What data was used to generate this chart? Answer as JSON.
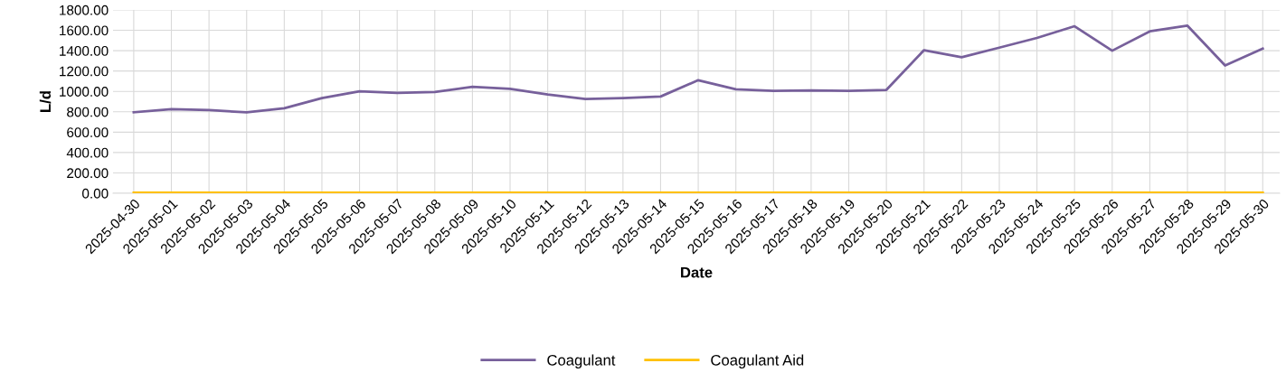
{
  "chart_data": {
    "type": "line",
    "xlabel": "Date",
    "ylabel": "L/d",
    "categories": [
      "2025-04-30",
      "2025-05-01",
      "2025-05-02",
      "2025-05-03",
      "2025-05-04",
      "2025-05-05",
      "2025-05-06",
      "2025-05-07",
      "2025-05-08",
      "2025-05-09",
      "2025-05-10",
      "2025-05-11",
      "2025-05-12",
      "2025-05-13",
      "2025-05-14",
      "2025-05-15",
      "2025-05-16",
      "2025-05-17",
      "2025-05-18",
      "2025-05-19",
      "2025-05-20",
      "2025-05-21",
      "2025-05-22",
      "2025-05-23",
      "2025-05-24",
      "2025-05-25",
      "2025-05-26",
      "2025-05-27",
      "2025-05-28",
      "2025-05-29",
      "2025-05-30"
    ],
    "series": [
      {
        "name": "Coagulant",
        "color": "#77609b",
        "values": [
          795,
          825,
          816,
          795,
          835,
          935,
          1000,
          985,
          995,
          1045,
          1025,
          970,
          925,
          935,
          950,
          1110,
          1020,
          1005,
          1010,
          1005,
          1015,
          1405,
          1335,
          1430,
          1525,
          1640,
          1400,
          1590,
          1645,
          1255,
          1420
        ]
      },
      {
        "name": "Coagulant Aid",
        "color": "#ffc000",
        "values": [
          5,
          5,
          5,
          5,
          5,
          5,
          5,
          5,
          5,
          5,
          5,
          5,
          5,
          5,
          5,
          5,
          5,
          5,
          5,
          5,
          5,
          5,
          5,
          5,
          5,
          5,
          5,
          5,
          5,
          5,
          5
        ]
      }
    ],
    "ylim": [
      0,
      1800
    ],
    "yticks": [
      {
        "value": 0,
        "label": "0.00"
      },
      {
        "value": 200,
        "label": "200.00"
      },
      {
        "value": 400,
        "label": "400.00"
      },
      {
        "value": 600,
        "label": "600.00"
      },
      {
        "value": 800,
        "label": "800.00"
      },
      {
        "value": 1000,
        "label": "1000.00"
      },
      {
        "value": 1200,
        "label": "1200.00"
      },
      {
        "value": 1400,
        "label": "1400.00"
      },
      {
        "value": 1600,
        "label": "1600.00"
      },
      {
        "value": 1800,
        "label": "1800.00"
      }
    ],
    "grid": true,
    "legend": "bottom"
  }
}
